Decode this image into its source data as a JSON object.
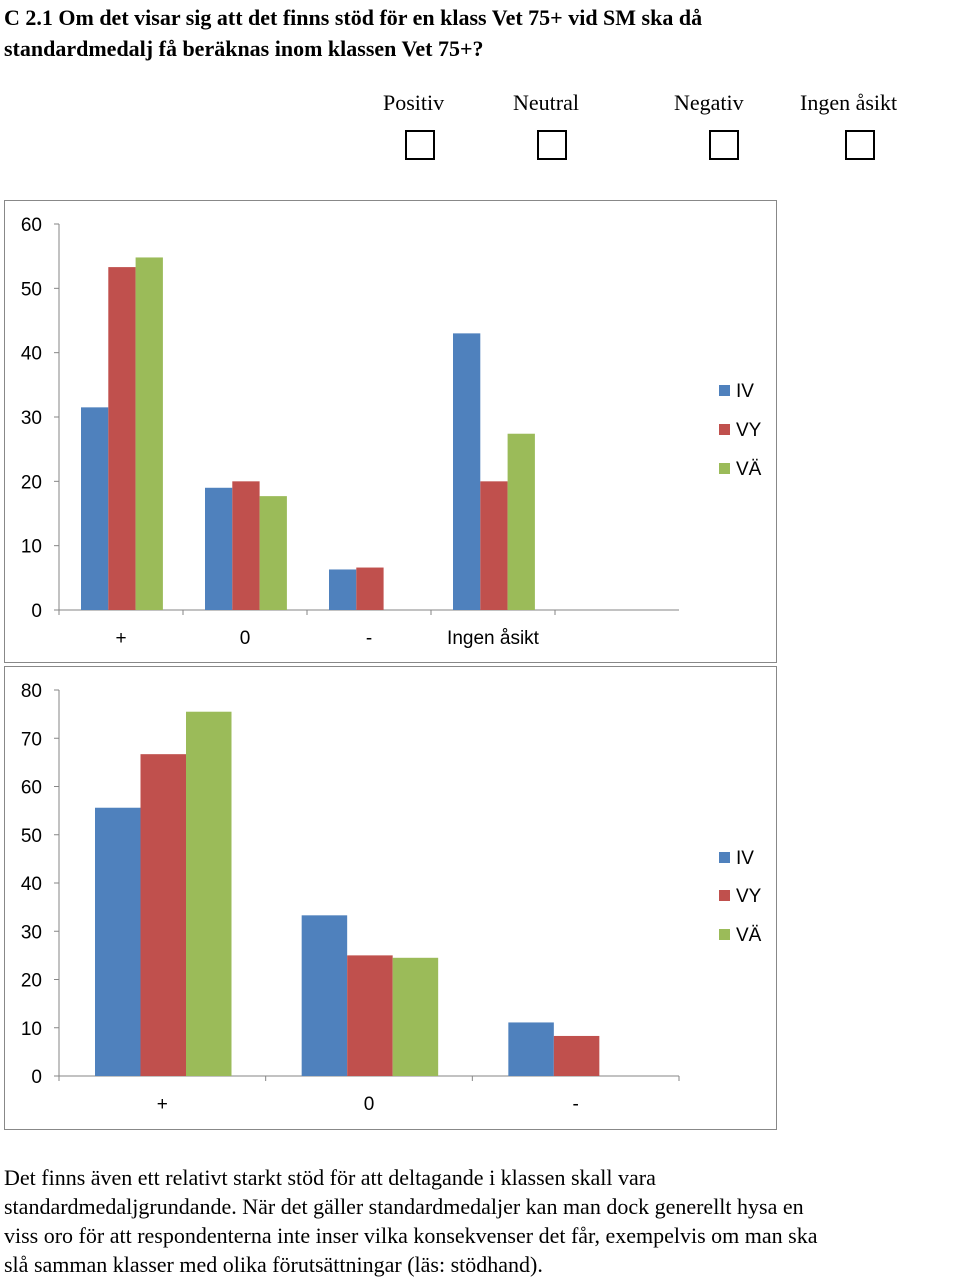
{
  "question": {
    "line1": "C 2.1 Om det visar sig att det finns stöd för en klass Vet 75+ vid SM ska då",
    "line2": "standardmedalj få beräknas inom klassen Vet 75+?"
  },
  "options": [
    "Positiv",
    "Neutral",
    "Negativ",
    "Ingen åsikt"
  ],
  "colors": {
    "IV": "#4f81bd",
    "VY": "#c0504d",
    "VÄ": "#9bbb59"
  },
  "chart_data": [
    {
      "type": "bar",
      "categories": [
        "+",
        "0",
        "-",
        "Ingen åsikt"
      ],
      "series": [
        {
          "name": "IV",
          "values": [
            31.5,
            19,
            6.3,
            43
          ]
        },
        {
          "name": "VY",
          "values": [
            53.3,
            20,
            6.6,
            20
          ]
        },
        {
          "name": "VÄ",
          "values": [
            54.8,
            17.7,
            null,
            27.4
          ]
        }
      ],
      "yticks": [
        "0",
        "10",
        "20",
        "30",
        "40",
        "50",
        "60"
      ],
      "ylim": [
        0,
        60
      ],
      "grid": false,
      "legend": "right"
    },
    {
      "type": "bar",
      "categories": [
        "+",
        "0",
        "-"
      ],
      "series": [
        {
          "name": "IV",
          "values": [
            55.6,
            33.3,
            11.1
          ]
        },
        {
          "name": "VY",
          "values": [
            66.7,
            25,
            8.3
          ]
        },
        {
          "name": "VÄ",
          "values": [
            75.5,
            24.5,
            null
          ]
        }
      ],
      "yticks": [
        "0",
        "10",
        "20",
        "30",
        "40",
        "50",
        "60",
        "70",
        "80"
      ],
      "ylim": [
        0,
        80
      ],
      "grid": false,
      "legend": "right"
    }
  ],
  "paragraph": {
    "line1": "Det finns även ett relativt starkt stöd för att deltagande i klassen skall vara",
    "line2": "standardmedaljgrundande. När det gäller standardmedaljer kan man dock generellt hysa en",
    "line3": "viss oro för att respondenterna inte inser vilka konsekvenser det får, exempelvis om man ska",
    "line4": "slå samman klasser med olika förutsättningar (läs: stödhand)."
  }
}
